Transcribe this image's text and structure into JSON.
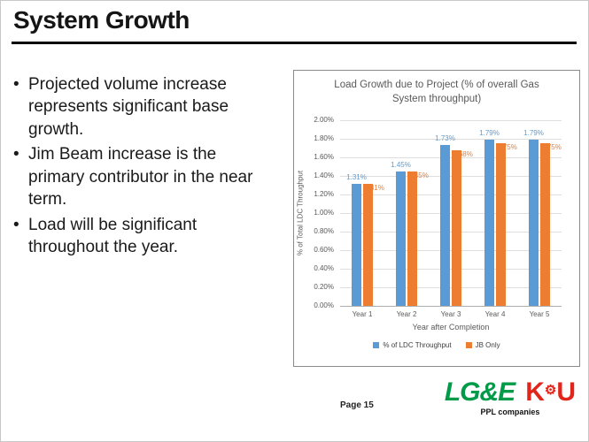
{
  "slide": {
    "title": "System Growth",
    "bullets": [
      "Projected volume increase represents significant base growth.",
      "Jim Beam increase is the primary contributor in the near term.",
      "Load will be significant throughout the year."
    ],
    "page_label": "Page 15"
  },
  "footer": {
    "lge": "LG&E",
    "lge_color": "#009B48",
    "ku_k": "K",
    "ku_gear": "⚙",
    "ku_u": "U",
    "ku_color": "#E1251B",
    "ppl": "PPL companies"
  },
  "chart_data": {
    "type": "bar",
    "title": "Load Growth due to Project (% of overall Gas System throughput)",
    "categories": [
      "Year 1",
      "Year 2",
      "Year 3",
      "Year 4",
      "Year 5"
    ],
    "series": [
      {
        "name": "% of LDC Throughput",
        "color": "#5B9BD5",
        "values": [
          1.31,
          1.45,
          1.73,
          1.79,
          1.79
        ],
        "labels": [
          "1.31%",
          "1.45%",
          "1.73%",
          "1.79%",
          "1.79%"
        ]
      },
      {
        "name": "JB Only",
        "color": "#ED7D31",
        "values": [
          1.31,
          1.45,
          1.68,
          1.75,
          1.75
        ],
        "labels": [
          "1.31%",
          "1.45%",
          "1.68%",
          "1.75%",
          "1.75%"
        ]
      }
    ],
    "xlabel": "Year after Completion",
    "ylabel": "% of Total LDC Throughput",
    "ylim": [
      0,
      2.0
    ],
    "ytick_step": 0.2,
    "ytick_labels": [
      "0.00%",
      "0.20%",
      "0.40%",
      "0.60%",
      "0.80%",
      "1.00%",
      "1.20%",
      "1.40%",
      "1.60%",
      "1.80%",
      "2.00%"
    ],
    "grid": true,
    "legend_position": "bottom"
  }
}
